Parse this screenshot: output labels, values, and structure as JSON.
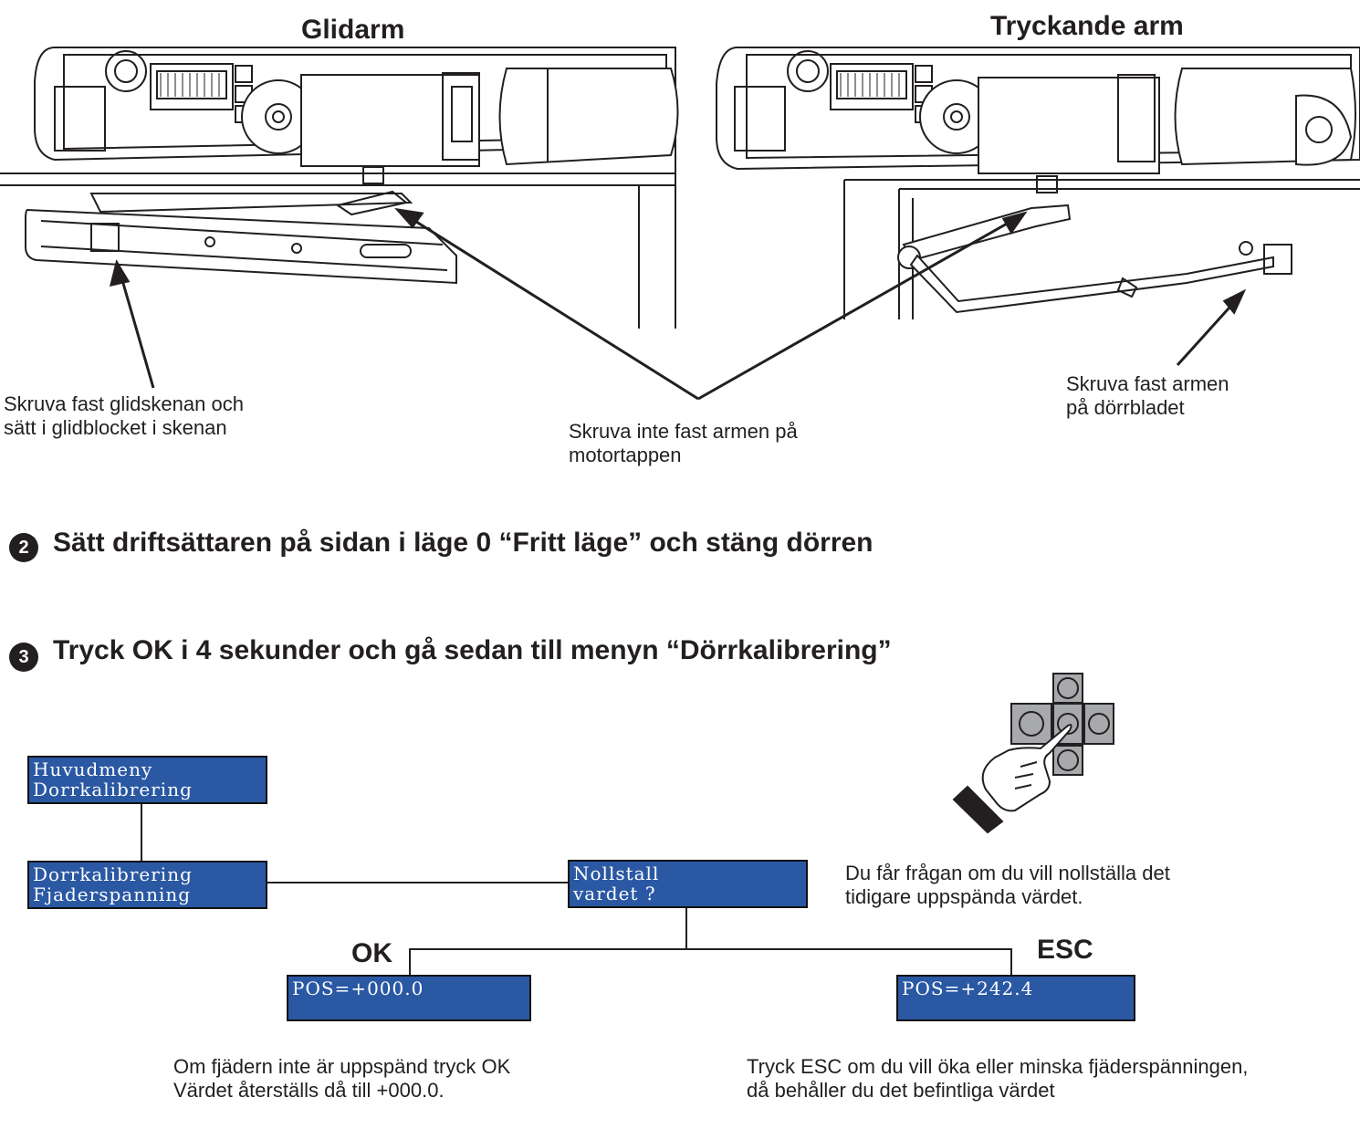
{
  "headings": {
    "left": "Glidarm",
    "right": "Tryckande arm"
  },
  "captions": {
    "slide_rail": [
      "Skruva fast glidskenan och",
      "sätt i glidblocket i skenan"
    ],
    "motor_pin": [
      "Skruva inte fast armen på",
      "motortappen"
    ],
    "door_leaf": [
      "Skruva fast armen",
      "på dörrbladet"
    ]
  },
  "steps": [
    {
      "number": "2",
      "text": "Sätt driftsättaren på sidan i läge 0 “Fritt läge” och stäng dörren"
    },
    {
      "number": "3",
      "text": "Tryck OK i 4 sekunder och gå sedan till menyn “Dörrkalibrering”"
    }
  ],
  "lcd": {
    "main_menu": [
      "Huvudmeny",
      "Dorrkalibrering"
    ],
    "calibration": [
      "Dorrkalibrering",
      "Fjaderspanning"
    ],
    "reset_question": [
      "Nollstall",
      "vardet ?"
    ],
    "pos_ok": "POS=+000.0",
    "pos_esc": "POS=+242.4"
  },
  "keys": {
    "ok": "OK",
    "esc": "ESC"
  },
  "notes": {
    "reset_info": [
      "Du får frågan om du vill nollställa det",
      "tidigare uppspända värdet."
    ],
    "ok_info": [
      "Om fjädern inte är uppspänd tryck OK",
      "Värdet återställs då till +000.0."
    ],
    "esc_info": [
      "Tryck ESC om du vill öka eller minska fjäderspänningen,",
      "då behåller du det befintliga värdet"
    ]
  },
  "icons": [
    "door-operator-drawing",
    "slide-rail-drawing",
    "push-arm-drawing",
    "hand-pointer-icon",
    "keypad-icon"
  ]
}
